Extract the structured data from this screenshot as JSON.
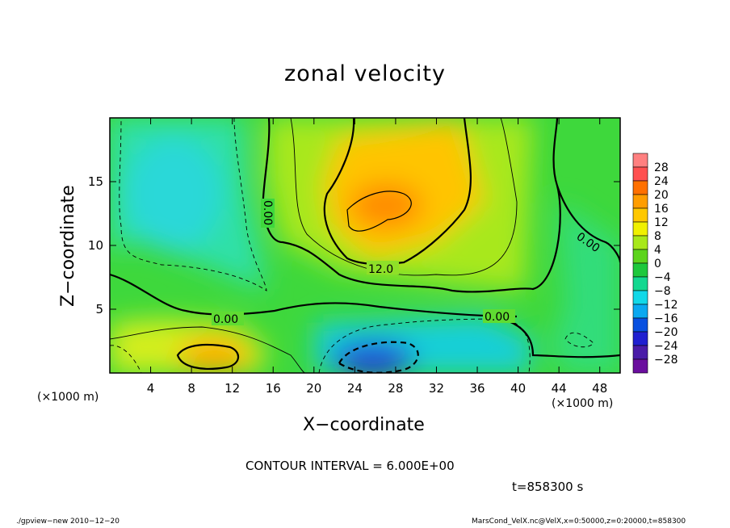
{
  "chart_data": {
    "type": "heatmap",
    "title": "zonal velocity",
    "xlabel": "X−coordinate",
    "ylabel": "Z−coordinate",
    "x_unit_label": "(×1000 m)",
    "xlim": [
      0,
      50
    ],
    "ylim": [
      0,
      20
    ],
    "x_ticks": [
      4,
      8,
      12,
      16,
      20,
      24,
      28,
      32,
      36,
      40,
      44,
      48
    ],
    "y_ticks": [
      5,
      10,
      15
    ],
    "colorbar": {
      "levels": [
        28,
        24,
        20,
        16,
        12,
        8,
        4,
        0,
        -4,
        -8,
        -12,
        -16,
        -20,
        -24,
        -28
      ],
      "labels": [
        "28",
        "24",
        "20",
        "16",
        "12",
        "8",
        "4",
        "0",
        "−4",
        "−8",
        "−12",
        "−16",
        "−20",
        "−24",
        "−28"
      ]
    },
    "contour_labels": [
      "0.00",
      "12.0",
      "0.00",
      "0.00",
      "0.00"
    ],
    "contour_interval_text": "CONTOUR INTERVAL = 6.000E+00",
    "features": [
      {
        "x": 27,
        "z": 12.5,
        "value": 18
      },
      {
        "x": 10,
        "z": 1.3,
        "value": 14
      },
      {
        "x": 25,
        "z": 1.0,
        "value": -18
      },
      {
        "x": 8,
        "z": 14,
        "value": -8
      },
      {
        "x": 44,
        "z": 2.5,
        "value": -2
      }
    ]
  },
  "time_text": "t=858300 s",
  "footer": {
    "left": "./gpview−new  2010−12−20",
    "right": "MarsCond_VelX.nc@VelX,x=0:50000,z=0:20000,t=858300"
  },
  "colors": {
    "very_low": "#6a0e9e",
    "low": "#1628d6",
    "neg": "#00c8f0",
    "zero": "#19c43c",
    "pos": "#e8ff00",
    "high": "#ff7800",
    "very_high": "#ff7a7a"
  }
}
